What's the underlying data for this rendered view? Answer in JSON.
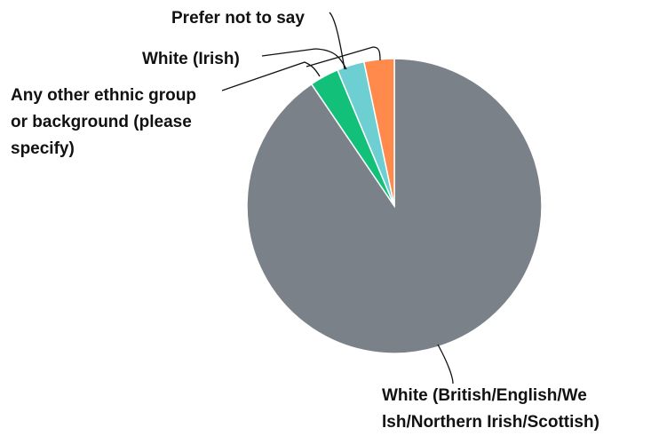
{
  "chart_data": {
    "type": "pie",
    "slices": [
      {
        "label": "White (British/English/Welsh/Northern Irish/Scottish)",
        "value": 90.5,
        "color": "#7a8188"
      },
      {
        "label": "Any other ethnic group or background (please specify)",
        "value": 3.2,
        "color": "#13c07a"
      },
      {
        "label": "White (Irish)",
        "value": 3.0,
        "color": "#6ecfd2"
      },
      {
        "label": "Prefer not to say",
        "value": 3.3,
        "color": "#ff8a4c"
      }
    ],
    "label_lines": [
      [
        "White (British/English/We",
        "lsh/Northern Irish/Scottish)"
      ],
      [
        "Any other ethnic group",
        "or background (please",
        "specify)"
      ],
      [
        "White (Irish)"
      ],
      [
        "Prefer not to say"
      ]
    ]
  }
}
